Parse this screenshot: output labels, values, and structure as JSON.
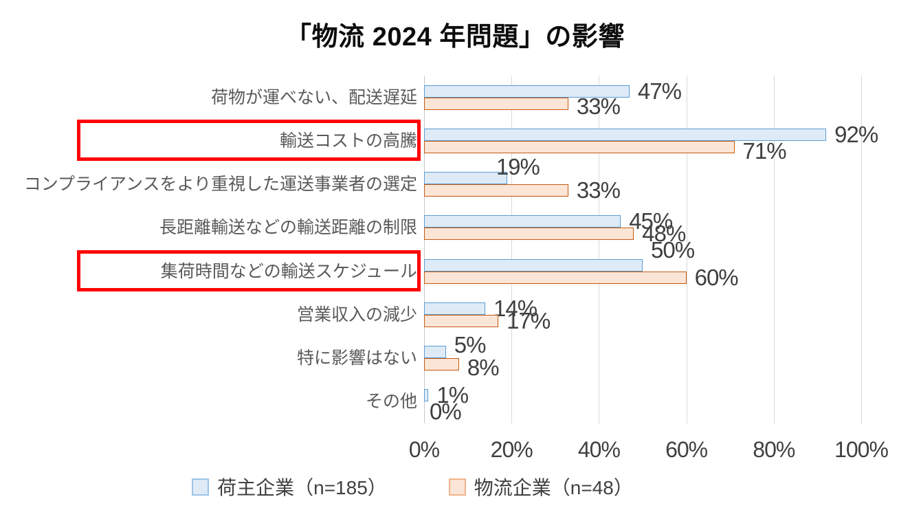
{
  "title": "「物流 2024 年問題」の影響",
  "colors": {
    "shipper_fill": "#DEEBF7",
    "shipper_border": "#5B9BD5",
    "logistics_fill": "#FBE5D6",
    "logistics_border": "#C55A11",
    "highlight_box": "#FF0000",
    "gridline": "#D9D9D9",
    "value_text": "#3F3F3F",
    "category_text": "#595959"
  },
  "chart_data": {
    "type": "bar",
    "orientation": "horizontal",
    "title": "「物流 2024 年問題」の影響",
    "categories": [
      "荷物が運べない、配送遅延",
      "輸送コストの高騰",
      "コンプライアンスをより重視した運送事業者の選定",
      "長距離輸送などの輸送距離の制限",
      "集荷時間などの輸送スケジュール",
      "営業収入の減少",
      "特に影響はない",
      "その他"
    ],
    "series": [
      {
        "name": "荷主企業（n=185）",
        "values": [
          47,
          92,
          19,
          45,
          50,
          14,
          5,
          1
        ]
      },
      {
        "name": "物流企業（n=48）",
        "values": [
          33,
          71,
          33,
          48,
          60,
          17,
          8,
          0
        ]
      }
    ],
    "value_suffix": "%",
    "x_ticks": [
      "0%",
      "20%",
      "40%",
      "60%",
      "80%",
      "100%"
    ],
    "xlim": [
      0,
      100
    ],
    "grid": "vertical",
    "legend_position": "bottom",
    "highlighted_categories": [
      "輸送コストの高騰",
      "集荷時間などの輸送スケジュール"
    ]
  }
}
